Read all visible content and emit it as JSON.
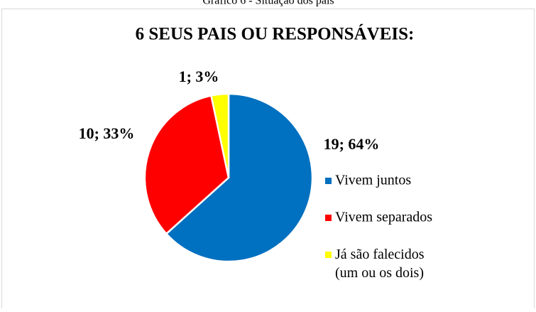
{
  "caption": "Gráfico 6 - Situação dos pais",
  "chart_data": {
    "type": "pie",
    "title": "6    SEUS PAIS OU RESPONSÁVEIS:",
    "categories": [
      "Vivem juntos",
      "Vivem separados",
      "Já são falecidos (um ou os dois)"
    ],
    "values": [
      19,
      10,
      1
    ],
    "value_labels": [
      "19; 64%",
      "10; 33%",
      "1; 3%"
    ],
    "colors": [
      "#0070c0",
      "#ff0000",
      "#ffff00"
    ],
    "legend": "right"
  }
}
